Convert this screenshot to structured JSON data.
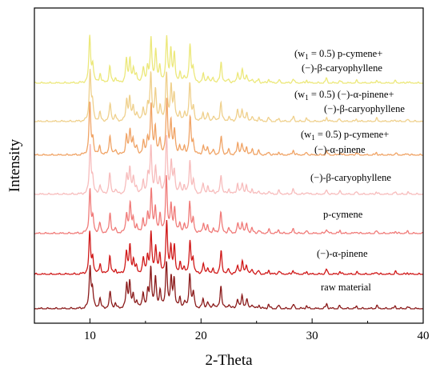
{
  "chart_data": {
    "type": "line",
    "xlabel": "2-Theta",
    "ylabel": "Intensity",
    "xlim": [
      5,
      40
    ],
    "xticks": [
      "10",
      "20",
      "30",
      "40"
    ],
    "grid": false,
    "legend": "none (series labeled inline above each pattern)",
    "series": [
      {
        "label_lines": [
          [
            "(w",
            "1",
            " = 0.5) p-cymene+"
          ],
          [
            "(−)-β-caryophyllene"
          ]
        ],
        "color": "#ece87a"
      },
      {
        "label_lines": [
          [
            "(w",
            "1",
            " = 0.5) (−)-α-pinene+"
          ],
          [
            "(−)-β-caryophyllene"
          ]
        ],
        "color": "#efd08c"
      },
      {
        "label_lines": [
          [
            "(w",
            "1",
            " = 0.5) p-cymene+"
          ],
          [
            "(−)-α-pinene"
          ]
        ],
        "color": "#f0a365"
      },
      {
        "label_lines": [
          [
            "(−)-β-caryophyllene"
          ]
        ],
        "color": "#f7bcbc"
      },
      {
        "label_lines": [
          [
            "p-cymene"
          ]
        ],
        "color": "#f07a78"
      },
      {
        "label_lines": [
          [
            "(−)-α-pinene"
          ]
        ],
        "color": "#d01818"
      },
      {
        "label_lines": [
          [
            "raw material"
          ]
        ],
        "color": "#8a1a1a"
      }
    ],
    "peaks": [
      {
        "x": 10.0,
        "h": 1.0
      },
      {
        "x": 10.25,
        "h": 0.35
      },
      {
        "x": 10.9,
        "h": 0.2
      },
      {
        "x": 11.8,
        "h": 0.4
      },
      {
        "x": 12.3,
        "h": 0.1
      },
      {
        "x": 13.3,
        "h": 0.45
      },
      {
        "x": 13.6,
        "h": 0.55
      },
      {
        "x": 13.9,
        "h": 0.3
      },
      {
        "x": 14.2,
        "h": 0.15
      },
      {
        "x": 14.8,
        "h": 0.3
      },
      {
        "x": 15.2,
        "h": 0.35
      },
      {
        "x": 15.5,
        "h": 0.95
      },
      {
        "x": 15.9,
        "h": 0.6
      },
      {
        "x": 16.3,
        "h": 0.35
      },
      {
        "x": 16.9,
        "h": 1.1
      },
      {
        "x": 17.3,
        "h": 0.65
      },
      {
        "x": 17.6,
        "h": 0.55
      },
      {
        "x": 18.1,
        "h": 0.2
      },
      {
        "x": 18.5,
        "h": 0.15
      },
      {
        "x": 19.0,
        "h": 0.75
      },
      {
        "x": 19.3,
        "h": 0.3
      },
      {
        "x": 20.2,
        "h": 0.2
      },
      {
        "x": 20.6,
        "h": 0.15
      },
      {
        "x": 21.1,
        "h": 0.1
      },
      {
        "x": 21.8,
        "h": 0.45
      },
      {
        "x": 22.5,
        "h": 0.1
      },
      {
        "x": 23.3,
        "h": 0.22
      },
      {
        "x": 23.7,
        "h": 0.25
      },
      {
        "x": 24.1,
        "h": 0.18
      },
      {
        "x": 24.6,
        "h": 0.1
      },
      {
        "x": 25.2,
        "h": 0.08
      },
      {
        "x": 26.1,
        "h": 0.08
      },
      {
        "x": 27.0,
        "h": 0.07
      },
      {
        "x": 28.3,
        "h": 0.1
      },
      {
        "x": 29.5,
        "h": 0.06
      },
      {
        "x": 31.3,
        "h": 0.1
      },
      {
        "x": 32.5,
        "h": 0.06
      },
      {
        "x": 34.0,
        "h": 0.05
      },
      {
        "x": 35.8,
        "h": 0.06
      },
      {
        "x": 37.5,
        "h": 0.05
      },
      {
        "x": 38.6,
        "h": 0.04
      }
    ]
  }
}
